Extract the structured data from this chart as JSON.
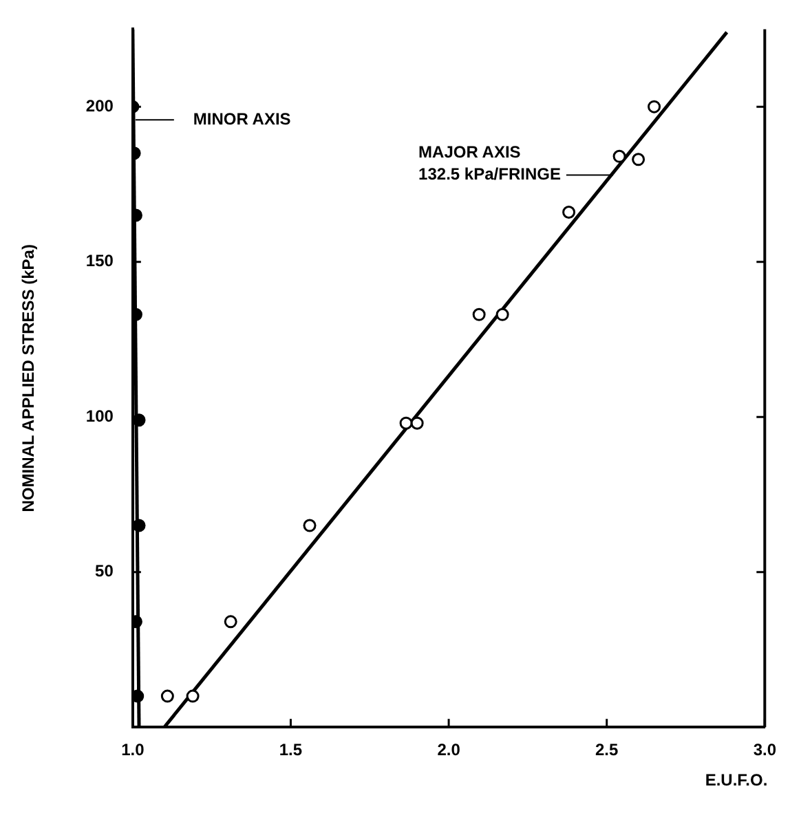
{
  "chart_data": {
    "type": "scatter",
    "xlabel": "E.U.F.O.",
    "ylabel": "NOMINAL APPLIED STRESS (kPa)",
    "xlim": [
      1,
      3
    ],
    "ylim": [
      0,
      225
    ],
    "xticks": [
      {
        "value": 1,
        "label": "1.0"
      },
      {
        "value": 1.5,
        "label": "1.5"
      },
      {
        "value": 2,
        "label": "2.0"
      },
      {
        "value": 2.5,
        "label": "2.5"
      },
      {
        "value": 3,
        "label": "3.0"
      }
    ],
    "yticks": [
      50,
      100,
      150,
      200
    ],
    "grid": false,
    "legend": false,
    "marker": "circle",
    "series": [
      {
        "color": "#000000",
        "x": [
          1.0,
          1.005,
          1.01,
          1.01,
          1.02,
          1.02,
          1.01,
          1.015
        ],
        "values": [
          200,
          185,
          165,
          133,
          99,
          65,
          34,
          10
        ]
      },
      {
        "color": "#000000",
        "x": [
          1.11,
          1.19,
          1.31,
          1.56,
          1.865,
          1.9,
          2.096,
          2.17,
          2.38,
          2.54,
          2.6,
          2.65
        ],
        "values": [
          10,
          10,
          34,
          65,
          98,
          98,
          133,
          133,
          166,
          184,
          183,
          200
        ]
      },
      {
        "type": "line",
        "marker": "none",
        "color": "#000000",
        "x": [
          1.02,
          1.0
        ],
        "values": [
          0,
          225
        ]
      },
      {
        "type": "line",
        "marker": "none",
        "color": "#000000",
        "x": [
          1.1,
          2.88
        ],
        "values": [
          0,
          224
        ]
      }
    ],
    "annotations": [
      "MINOR AXIS",
      {
        "text": "MAJOR AXIS\n132.5 kPa/FRINGE",
        "x": 2.52,
        "y": 178
      }
    ]
  }
}
